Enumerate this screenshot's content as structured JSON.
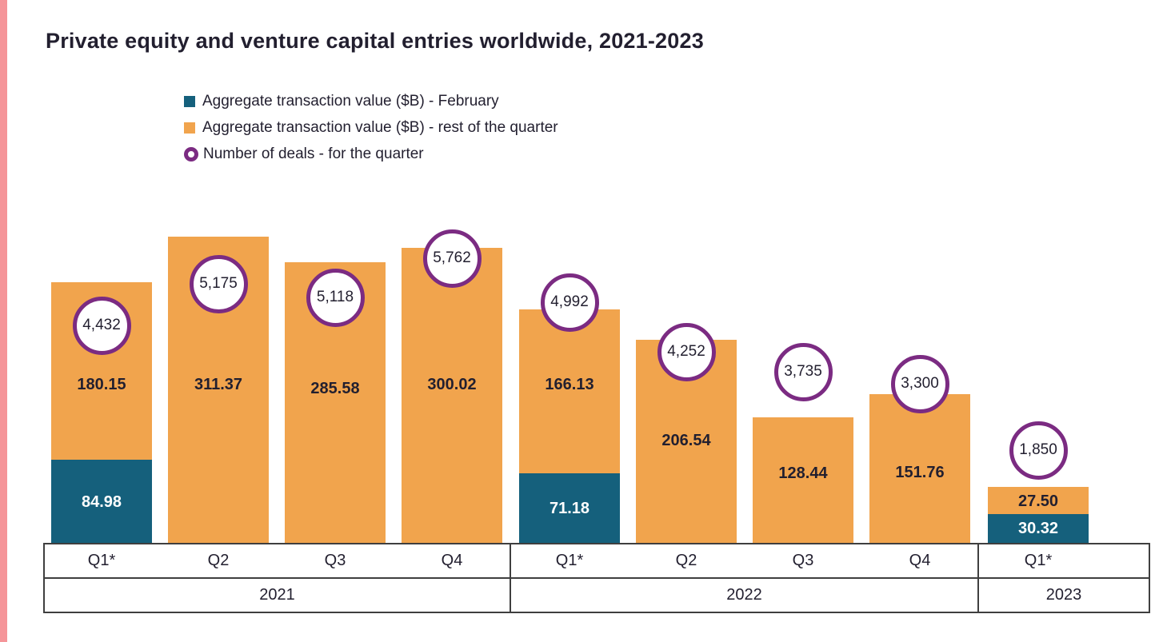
{
  "page": {
    "accent_stripe_color": "#f59599",
    "background_color": "#ffffff"
  },
  "chart_data": {
    "type": "bar",
    "stacked": true,
    "title": "Private equity and venture capital entries worldwide, 2021-2023",
    "value_unit": "$B",
    "legend_position": "top",
    "grid": false,
    "colors": {
      "february_segment": "#15607c",
      "rest_of_quarter_segment": "#f1a44d",
      "deals_ring": "#7b2b82"
    },
    "legend": [
      {
        "label": "Aggregate transaction value ($B) - February",
        "color": "#15607c",
        "marker": "square"
      },
      {
        "label": "Aggregate transaction value ($B) - rest of the quarter",
        "color": "#f1a44d",
        "marker": "square"
      },
      {
        "label": "Number of deals - for the quarter",
        "color": "#7b2b82",
        "marker": "ring"
      }
    ],
    "groups": [
      {
        "year": "2021",
        "bar_indices": [
          0,
          1,
          2,
          3
        ]
      },
      {
        "year": "2022",
        "bar_indices": [
          4,
          5,
          6,
          7
        ]
      },
      {
        "year": "2023",
        "bar_indices": [
          8
        ]
      }
    ],
    "bars": [
      {
        "year": "2021",
        "quarter": "Q1*",
        "february": 84.98,
        "rest": 180.15,
        "deals": 4432,
        "february_label": "84.98",
        "rest_label": "180.15",
        "deals_label": "4,432"
      },
      {
        "year": "2021",
        "quarter": "Q2",
        "february": null,
        "rest": 311.37,
        "deals": 5175,
        "february_label": null,
        "rest_label": "311.37",
        "deals_label": "5,175"
      },
      {
        "year": "2021",
        "quarter": "Q3",
        "february": null,
        "rest": 285.58,
        "deals": 5118,
        "february_label": null,
        "rest_label": "285.58",
        "deals_label": "5,118"
      },
      {
        "year": "2021",
        "quarter": "Q4",
        "february": null,
        "rest": 300.02,
        "deals": 5762,
        "february_label": null,
        "rest_label": "300.02",
        "deals_label": "5,762"
      },
      {
        "year": "2022",
        "quarter": "Q1*",
        "february": 71.18,
        "rest": 166.13,
        "deals": 4992,
        "february_label": "71.18",
        "rest_label": "166.13",
        "deals_label": "4,992"
      },
      {
        "year": "2022",
        "quarter": "Q2",
        "february": null,
        "rest": 206.54,
        "deals": 4252,
        "february_label": null,
        "rest_label": "206.54",
        "deals_label": "4,252"
      },
      {
        "year": "2022",
        "quarter": "Q3",
        "february": null,
        "rest": 128.44,
        "deals": 3735,
        "february_label": null,
        "rest_label": "128.44",
        "deals_label": "3,735"
      },
      {
        "year": "2022",
        "quarter": "Q4",
        "february": null,
        "rest": 151.76,
        "deals": 3300,
        "february_label": null,
        "rest_label": "151.76",
        "deals_label": "3,300"
      },
      {
        "year": "2023",
        "quarter": "Q1*",
        "february": 30.32,
        "rest": 27.5,
        "deals": 1850,
        "february_label": "30.32",
        "rest_label": "27.50",
        "deals_label": "1,850"
      }
    ]
  }
}
